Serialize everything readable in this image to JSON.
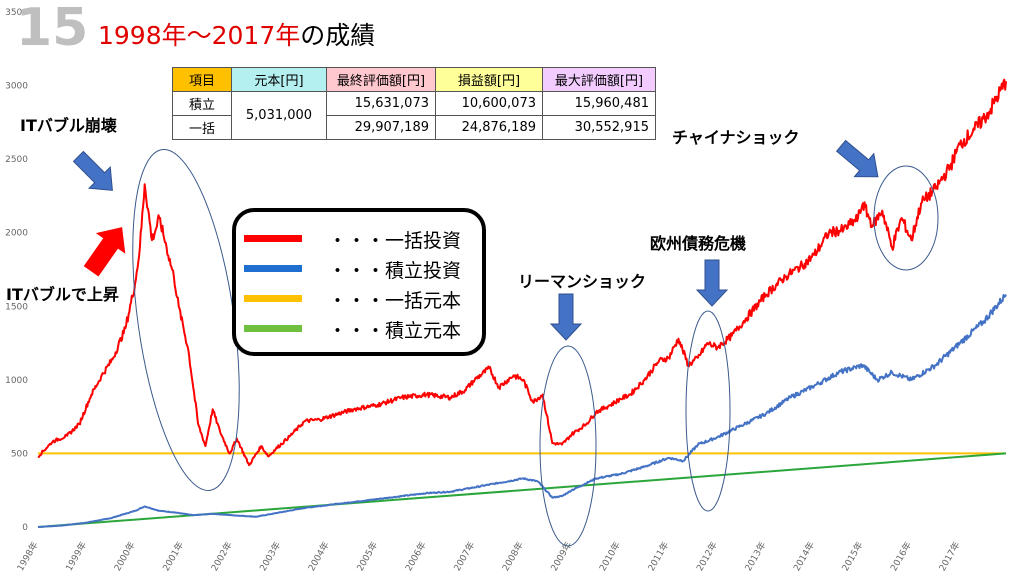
{
  "header": {
    "number": "15",
    "title": "1998年～2017年",
    "title_suffix": "の成績"
  },
  "summary_table": {
    "headers": [
      "項目",
      "元本[円]",
      "最終評価額[円]",
      "損益額[円]",
      "最大評価額[円]"
    ],
    "header_colors": [
      "#ffc000",
      "#b4f0f0",
      "#ffc7ce",
      "#ffff99",
      "#f2ccff"
    ],
    "principal": "5,031,000",
    "rows": [
      {
        "label": "積立",
        "final": "15,631,073",
        "profit": "10,600,073",
        "max": "15,960,481"
      },
      {
        "label": "一括",
        "final": "29,907,189",
        "profit": "24,876,189",
        "max": "30,552,915"
      }
    ]
  },
  "legend": [
    {
      "label": "・・・一括投資",
      "color": "#ff0000"
    },
    {
      "label": "・・・積立投資",
      "color": "#1f6fd0"
    },
    {
      "label": "・・・一括元本",
      "color": "#ffc000"
    },
    {
      "label": "・・・積立元本",
      "color": "#70c040"
    }
  ],
  "annotations": {
    "it_collapse": "ITバブル崩壊",
    "it_rise": "ITバブルで上昇",
    "lehman": "リーマンショック",
    "euro": "欧州債務危機",
    "china": "チャイナショック"
  },
  "chart_data": {
    "type": "line",
    "ylim": [
      0,
      3500
    ],
    "yticks": [
      0,
      500,
      1000,
      1500,
      2000,
      2500,
      3000,
      3500
    ],
    "xlim": [
      1998.0,
      2017.95
    ],
    "xticks": [
      1998,
      1999,
      2000,
      2001,
      2002,
      2003,
      2004,
      2005,
      2006,
      2007,
      2008,
      2009,
      2010,
      2011,
      2012,
      2013,
      2014,
      2015,
      2016,
      2017
    ],
    "xtick_labels": [
      "1998年",
      "1999年",
      "2000年",
      "2001年",
      "2002年",
      "2003年",
      "2004年",
      "2005年",
      "2006年",
      "2007年",
      "2008年",
      "2009年",
      "2010年",
      "2011年",
      "2012年",
      "2013年",
      "2014年",
      "2015年",
      "2016年",
      "2017年"
    ],
    "series": [
      {
        "name": "一括投資",
        "color": "#ff0000",
        "width": 2,
        "x": [
          1998.0,
          1998.3,
          1998.6,
          1998.85,
          1999.1,
          1999.3,
          1999.55,
          1999.8,
          2000.0,
          2000.1,
          2000.2,
          2000.35,
          2000.5,
          2000.65,
          2000.8,
          2000.9,
          2001.1,
          2001.3,
          2001.45,
          2001.6,
          2001.75,
          2001.95,
          2002.1,
          2002.35,
          2002.6,
          2002.75,
          2002.9,
          2003.2,
          2003.5,
          2003.8,
          2004.0,
          2004.5,
          2005.0,
          2005.5,
          2006.0,
          2006.5,
          2006.8,
          2007.0,
          2007.3,
          2007.5,
          2007.8,
          2008.0,
          2008.2,
          2008.4,
          2008.6,
          2008.8,
          2009.0,
          2009.3,
          2009.5,
          2009.8,
          2010.0,
          2010.2,
          2010.5,
          2010.8,
          2011.0,
          2011.2,
          2011.4,
          2011.6,
          2011.8,
          2012.0,
          2012.3,
          2012.6,
          2013.0,
          2013.4,
          2013.8,
          2014.0,
          2014.3,
          2014.6,
          2014.9,
          2015.0,
          2015.2,
          2015.4,
          2015.6,
          2015.8,
          2016.0,
          2016.2,
          2016.5,
          2016.8,
          2017.0,
          2017.3,
          2017.6,
          2017.95
        ],
        "values": [
          480,
          580,
          620,
          700,
          900,
          1020,
          1150,
          1350,
          1650,
          1900,
          2330,
          1950,
          2100,
          1900,
          1700,
          1500,
          1200,
          700,
          550,
          800,
          650,
          500,
          600,
          420,
          550,
          480,
          530,
          620,
          720,
          730,
          750,
          800,
          830,
          880,
          900,
          880,
          930,
          1000,
          1080,
          950,
          1030,
          1000,
          850,
          900,
          570,
          560,
          630,
          700,
          780,
          830,
          870,
          900,
          1000,
          1130,
          1150,
          1280,
          1100,
          1150,
          1250,
          1220,
          1300,
          1420,
          1580,
          1700,
          1790,
          1850,
          2000,
          2020,
          2100,
          2200,
          2050,
          2150,
          1900,
          2100,
          1950,
          2200,
          2300,
          2450,
          2600,
          2700,
          2820,
          3030
        ]
      },
      {
        "name": "積立投資",
        "color": "#4472c4",
        "width": 2,
        "x": [
          1998.0,
          1998.5,
          1999.0,
          1999.5,
          2000.0,
          2000.2,
          2000.5,
          2000.8,
          2001.2,
          2001.6,
          2002.0,
          2002.5,
          2003.0,
          2003.5,
          2004.0,
          2004.5,
          2005.0,
          2005.5,
          2006.0,
          2006.5,
          2007.0,
          2007.5,
          2008.0,
          2008.3,
          2008.6,
          2008.8,
          2009.0,
          2009.5,
          2010.0,
          2010.5,
          2011.0,
          2011.3,
          2011.6,
          2012.0,
          2012.5,
          2013.0,
          2013.5,
          2014.0,
          2014.5,
          2015.0,
          2015.3,
          2015.6,
          2016.0,
          2016.5,
          2017.0,
          2017.5,
          2017.95
        ],
        "values": [
          0,
          10,
          30,
          60,
          110,
          140,
          110,
          100,
          80,
          90,
          80,
          70,
          100,
          130,
          150,
          170,
          190,
          210,
          230,
          240,
          270,
          300,
          330,
          310,
          200,
          210,
          250,
          330,
          360,
          410,
          470,
          450,
          560,
          610,
          690,
          770,
          880,
          960,
          1050,
          1100,
          1000,
          1050,
          1000,
          1100,
          1250,
          1400,
          1580
        ]
      },
      {
        "name": "一括元本",
        "color": "#ffc000",
        "width": 2,
        "x": [
          1998.0,
          2017.95
        ],
        "values": [
          500,
          500
        ]
      },
      {
        "name": "積立元本",
        "color": "#2aa63a",
        "width": 2,
        "x": [
          1998.0,
          2017.95
        ],
        "values": [
          0,
          500
        ]
      }
    ]
  }
}
